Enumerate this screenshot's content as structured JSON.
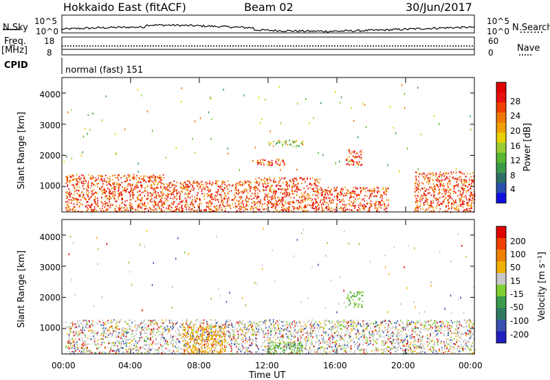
{
  "header": {
    "station": "Hokkaido East (fitACF)",
    "beam": "Beam 02",
    "date": "30/Jun/2017"
  },
  "top_panels": {
    "nsky_label": "N.Sky",
    "nsky_ticks": [
      "10^5",
      "10^0"
    ],
    "nsearch_label": "N.Search",
    "nsearch_ticks": [
      "10^5",
      "10^0"
    ],
    "freq_label_1": "Freq.",
    "freq_label_2": "[MHz]",
    "freq_ticks": [
      "18",
      "8"
    ],
    "nave_label": "Nave",
    "nave_ticks": [
      "60",
      "0"
    ],
    "cpid_label": "CPID",
    "cpid_value": "normal (fast) 151"
  },
  "chart_data": [
    {
      "type": "heatmap",
      "title": "",
      "xlabel": "",
      "ylabel": "Slant Range [km]",
      "xlim": [
        0,
        24
      ],
      "ylim": [
        180,
        4500
      ],
      "yticks": [
        "1000",
        "2000",
        "3000",
        "4000"
      ],
      "colorbar": {
        "label": "Power [dB]",
        "ticks": [
          "4",
          "8",
          "12",
          "16",
          "20",
          "24",
          "28"
        ],
        "colors": [
          "#1010e0",
          "#2a4fb0",
          "#2f6f68",
          "#3a9a4a",
          "#59b832",
          "#9acd32",
          "#e8d000",
          "#f0a000",
          "#f07800",
          "#f04000",
          "#e81010",
          "#e00000"
        ]
      },
      "regions": [
        {
          "t0": 0.2,
          "t1": 6,
          "r0": 200,
          "r1": 1400,
          "level": "high"
        },
        {
          "t0": 6,
          "t1": 11,
          "r0": 200,
          "r1": 1200,
          "level": "high"
        },
        {
          "t0": 11,
          "t1": 15,
          "r0": 200,
          "r1": 1300,
          "level": "high"
        },
        {
          "t0": 15,
          "t1": 19,
          "r0": 200,
          "r1": 1000,
          "level": "high"
        },
        {
          "t0": 20.5,
          "t1": 24,
          "r0": 200,
          "r1": 1500,
          "level": "high"
        },
        {
          "t0": 12,
          "t1": 14,
          "r0": 2300,
          "r1": 2500,
          "level": "mid"
        },
        {
          "t0": 16.5,
          "t1": 17.5,
          "r0": 1700,
          "r1": 2200,
          "level": "high"
        },
        {
          "t0": 11,
          "t1": 13,
          "r0": 1700,
          "r1": 1900,
          "level": "high"
        }
      ]
    },
    {
      "type": "heatmap",
      "title": "",
      "xlabel": "Time UT",
      "ylabel": "Slant Range [km]",
      "xlim": [
        0,
        24
      ],
      "ylim": [
        180,
        4500
      ],
      "yticks": [
        "1000",
        "2000",
        "3000",
        "4000"
      ],
      "xticks": [
        "00:00",
        "04:00",
        "08:00",
        "12:00",
        "16:00",
        "20:00",
        "00:00"
      ],
      "colorbar": {
        "label": "Velocity [m s⁻¹]",
        "ticks": [
          "200",
          "100",
          "50",
          "15",
          "-15",
          "-50",
          "-100",
          "-200"
        ],
        "colors": [
          "#2020c0",
          "#3a50b0",
          "#2f7a60",
          "#3a9a4a",
          "#80d030",
          "#c8c8c8",
          "#f0b000",
          "#f08000",
          "#f04000",
          "#e00000"
        ]
      },
      "regions": [
        {
          "t0": 0.2,
          "t1": 24,
          "r0": 200,
          "r1": 1300,
          "level": "grey"
        },
        {
          "t0": 7,
          "t1": 9.5,
          "r0": 200,
          "r1": 1100,
          "level": "orange"
        },
        {
          "t0": 12,
          "t1": 14,
          "r0": 200,
          "r1": 600,
          "level": "green"
        },
        {
          "t0": 16.5,
          "t1": 17.5,
          "r0": 1700,
          "r1": 2200,
          "level": "green"
        }
      ]
    }
  ]
}
